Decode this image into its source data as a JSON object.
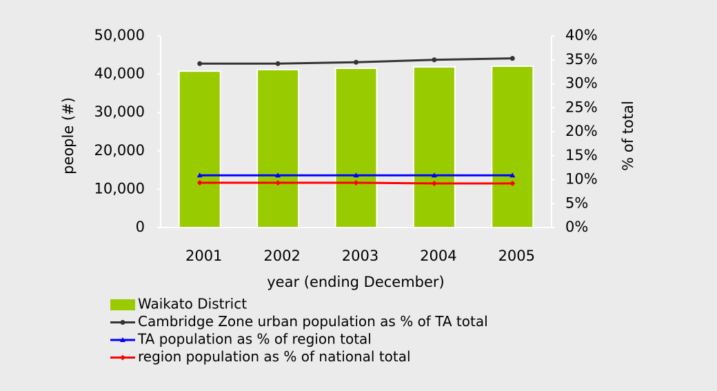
{
  "chart_data": {
    "type": "bar",
    "y_label": "people (#)",
    "y2_label": "% of total",
    "x_label": "year (ending December)",
    "categories": [
      "2001",
      "2002",
      "2003",
      "2004",
      "2005"
    ],
    "ylim": [
      0,
      50000
    ],
    "yticks": [
      0,
      {
        "value": 10000,
        "label": "10,000"
      },
      {
        "value": 20000,
        "label": "20,000"
      },
      {
        "value": 30000,
        "label": "30,000"
      },
      {
        "value": 40000,
        "label": "40,000"
      },
      {
        "value": 50000,
        "label": "50,000"
      }
    ],
    "y2lim": [
      0,
      40
    ],
    "y2ticks": [
      {
        "value": 0,
        "label": "0%"
      },
      {
        "value": 5,
        "label": "5%"
      },
      {
        "value": 10,
        "label": "10%"
      },
      {
        "value": 15,
        "label": "15%"
      },
      {
        "value": 20,
        "label": "20%"
      },
      {
        "value": 25,
        "label": "25%"
      },
      {
        "value": 30,
        "label": "30%"
      },
      {
        "value": 35,
        "label": "35%"
      },
      {
        "value": 40,
        "label": "40%"
      }
    ],
    "series": [
      {
        "name": "Waikato District",
        "type": "bar",
        "color": "#99cc00",
        "values": [
          40800,
          41200,
          41550,
          41900,
          42100
        ]
      },
      {
        "name": "Cambridge Zone urban population as % of TA total",
        "type": "line",
        "axis": "y2",
        "marker": "circle",
        "color": "#333333",
        "values": [
          34.2,
          34.2,
          34.5,
          35.0,
          35.3
        ]
      },
      {
        "name": "TA population as % of region total",
        "type": "line",
        "axis": "y2",
        "marker": "triangle",
        "color": "#0000ff",
        "values": [
          10.9,
          10.9,
          10.9,
          10.9,
          10.9
        ]
      },
      {
        "name": "region population as % of national total",
        "type": "line",
        "axis": "y2",
        "marker": "diamond",
        "color": "#ff0000",
        "values": [
          9.35,
          9.35,
          9.35,
          9.2,
          9.2
        ]
      }
    ]
  }
}
